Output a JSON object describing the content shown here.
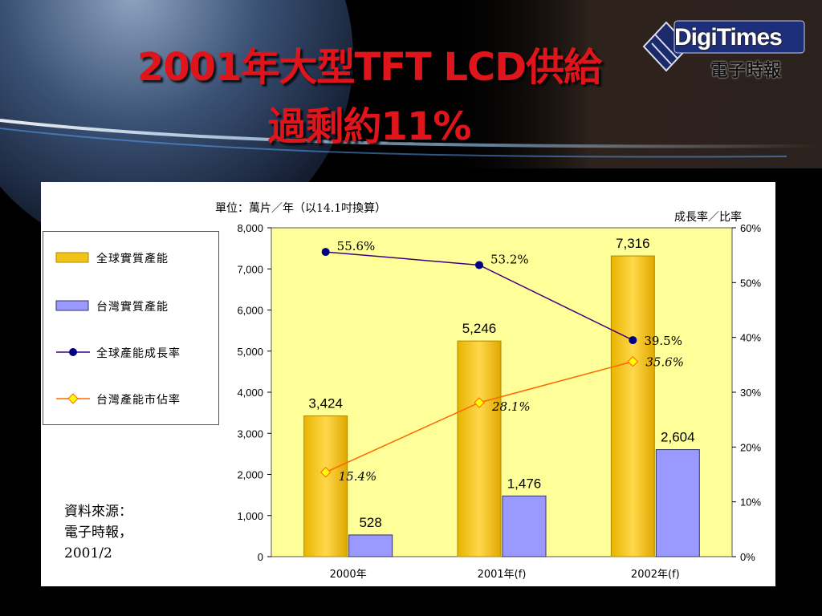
{
  "title": {
    "line1": "2001年大型TFT LCD供給",
    "line2": "過剩約11%"
  },
  "logo": {
    "brand": "DigiTimes",
    "tagline": "電子時報",
    "tm": "TM"
  },
  "colors": {
    "red_title": "#e0141b",
    "plot_bg": "#ffff99",
    "global_bar": "#f0c419",
    "taiwan_bar": "#9999ff",
    "global_line": "#3f007f",
    "taiwan_line": "#ff6600"
  },
  "chart_data": {
    "type": "bar",
    "unit_label": "單位：萬片／年（以14.1吋換算）",
    "y2_label": "成長率／比率",
    "categories": [
      "2000年",
      "2001年(f)",
      "2002年(f)"
    ],
    "ylim": [
      0,
      8000
    ],
    "yticks": [
      "0",
      "1,000",
      "2,000",
      "3,000",
      "4,000",
      "5,000",
      "6,000",
      "7,000",
      "8,000"
    ],
    "y2lim": [
      0,
      60
    ],
    "y2ticks": [
      "0%",
      "10%",
      "20%",
      "30%",
      "40%",
      "50%",
      "60%"
    ],
    "legend_placement": "left",
    "series": [
      {
        "name": "全球實質產能",
        "kind": "bar",
        "values": [
          3424,
          5246,
          7316
        ],
        "labels": [
          "3,424",
          "5,246",
          "7,316"
        ]
      },
      {
        "name": "台灣實質產能",
        "kind": "bar",
        "values": [
          528,
          1476,
          2604
        ],
        "labels": [
          "528",
          "1,476",
          "2,604"
        ]
      },
      {
        "name": "全球產能成長率",
        "kind": "line",
        "axis": "right",
        "values": [
          55.6,
          53.2,
          39.5
        ],
        "labels": [
          "55.6%",
          "53.2%",
          "39.5%"
        ]
      },
      {
        "name": "台灣產能市佔率",
        "kind": "line",
        "axis": "right",
        "values": [
          15.4,
          28.1,
          35.6
        ],
        "labels": [
          "15.4%",
          "28.1%",
          "35.6%"
        ]
      }
    ]
  },
  "source": {
    "line1": "資料來源：",
    "line2": "電子時報，",
    "line3": "2001/2"
  }
}
